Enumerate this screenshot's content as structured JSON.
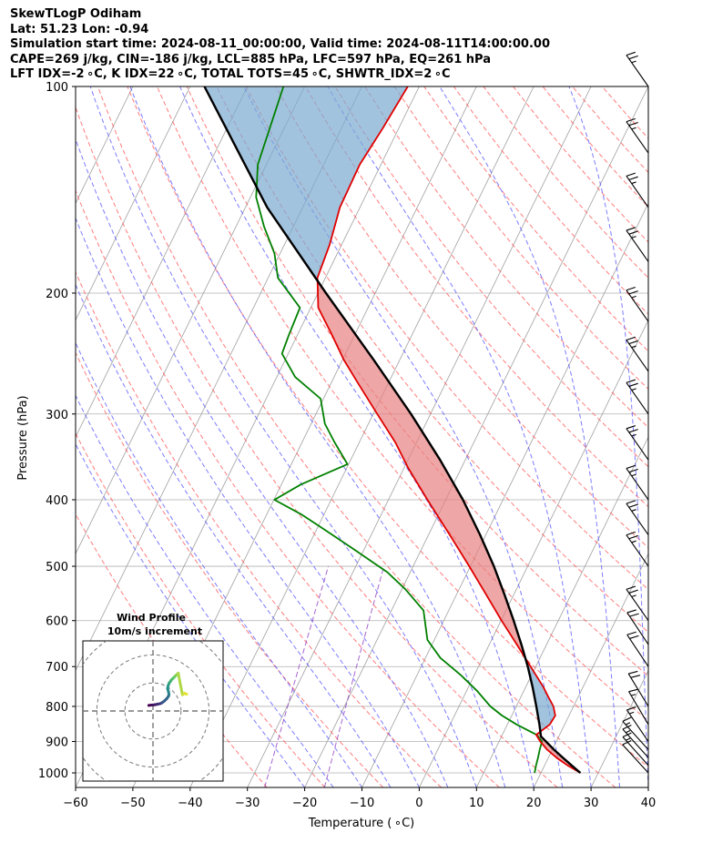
{
  "header": {
    "line1": "SkewTLogP Odiham",
    "line2": "Lat: 51.23   Lon: -0.94",
    "line3": "Simulation start time: 2024-08-11_00:00:00, Valid time: 2024-08-11T14:00:00.00",
    "line4": "CAPE=269 j/kg, CIN=-186 j/kg, LCL=885 hPa, LFC=597 hPa, EQ=261 hPa",
    "line5": "LFT IDX=-2 ∘C, K IDX=22 ∘C, TOTAL TOTS=45 ∘C, SHWTR_IDX=2 ∘C"
  },
  "hodograph": {
    "title": "Wind Profile",
    "subtitle": "10m/s increment"
  },
  "colors": {
    "temperature": "#e00000",
    "dewpoint": "#008000",
    "parcel": "#000000",
    "cape_fill": "#e88080",
    "cin_fill": "#7aa9d0",
    "dry_adiabat": "#ff5050",
    "moist_adiabat": "#5050ff",
    "mixing_ratio": "#9040c0",
    "isotherm": "#a0a0a0"
  },
  "chart_data": {
    "type": "skewt-logp",
    "title": "SkewTLogP Odiham",
    "xlabel": "Temperature ( ∘C)",
    "ylabel": "Pressure (hPa)",
    "xlim": [
      -60,
      40
    ],
    "ylim": [
      1050,
      100
    ],
    "skew": 60,
    "grid": true,
    "x_ticks": [
      -60,
      -50,
      -40,
      -30,
      -20,
      -10,
      0,
      10,
      20,
      30,
      40
    ],
    "x_tick_labels": [
      "−60",
      "−50",
      "−40",
      "−30",
      "−20",
      "−10",
      "0",
      "10",
      "20",
      "30",
      "40"
    ],
    "y_ticks": [
      1000,
      900,
      800,
      700,
      600,
      500,
      400,
      300,
      200,
      100
    ],
    "y_tick_labels": [
      "1000",
      "900",
      "800",
      "700",
      "600",
      "500",
      "400",
      "300",
      "200",
      "100"
    ],
    "temperature": {
      "p": [
        1000,
        975,
        950,
        925,
        900,
        880,
        850,
        825,
        800,
        775,
        750,
        700,
        650,
        600,
        550,
        500,
        450,
        400,
        360,
        330,
        300,
        270,
        250,
        230,
        210,
        190,
        170,
        150,
        130,
        115,
        100
      ],
      "t": [
        26.9,
        24.0,
        21.4,
        19.1,
        17.2,
        15.9,
        17.4,
        17.6,
        16.5,
        14.8,
        13.1,
        9.1,
        4.8,
        0.1,
        -4.8,
        -10.2,
        -16.3,
        -23.2,
        -29.2,
        -33.7,
        -39.3,
        -45.4,
        -49.8,
        -54.0,
        -58.7,
        -61.4,
        -62.1,
        -63.5,
        -63.7,
        -62.8,
        -62.0
      ]
    },
    "dewpoint": {
      "p": [
        1000,
        975,
        950,
        925,
        900,
        880,
        850,
        825,
        800,
        760,
        720,
        680,
        640,
        580,
        540,
        510,
        470,
        440,
        420,
        400,
        380,
        355,
        330,
        310,
        285,
        265,
        245,
        230,
        210,
        190,
        175,
        160,
        145,
        130,
        100
      ],
      "t": [
        18.9,
        18.5,
        18.2,
        17.8,
        17.5,
        16.0,
        11.6,
        8.3,
        5.5,
        1.9,
        -2.4,
        -7.4,
        -11.2,
        -14.4,
        -19.4,
        -24.0,
        -32.3,
        -39.1,
        -44.0,
        -49.9,
        -46.6,
        -40.2,
        -44.3,
        -47.6,
        -50.5,
        -56.8,
        -61.1,
        -61.5,
        -61.9,
        -68.3,
        -71.0,
        -75.1,
        -79.0,
        -81.5,
        -83.7
      ]
    },
    "parcel": {
      "p": [
        1000,
        975,
        950,
        925,
        900,
        885,
        850,
        800,
        750,
        700,
        650,
        600,
        550,
        500,
        450,
        400,
        350,
        300,
        250,
        200,
        150,
        100
      ],
      "t": [
        26.9,
        24.7,
        22.5,
        20.3,
        18.2,
        16.9,
        15.6,
        13.5,
        11.2,
        8.6,
        5.6,
        2.2,
        -1.6,
        -5.9,
        -11.0,
        -17.0,
        -24.4,
        -33.4,
        -44.6,
        -58.6,
        -76.2,
        -97.5
      ]
    },
    "wind_barbs": [
      {
        "p": 1000,
        "u": 4.1,
        "v": 4.5
      },
      {
        "p": 975,
        "u": 4.3,
        "v": 4.8
      },
      {
        "p": 950,
        "u": 4.5,
        "v": 5.0
      },
      {
        "p": 925,
        "u": 4.7,
        "v": 5.2
      },
      {
        "p": 900,
        "u": 4.1,
        "v": 6.0
      },
      {
        "p": 850,
        "u": 3.8,
        "v": 6.4
      },
      {
        "p": 800,
        "u": 4.8,
        "v": 7.9
      },
      {
        "p": 700,
        "u": 6.0,
        "v": 9.0
      },
      {
        "p": 650,
        "u": 6.3,
        "v": 9.5
      },
      {
        "p": 600,
        "u": 7.0,
        "v": 10.0
      },
      {
        "p": 500,
        "u": 7.0,
        "v": 10.0
      },
      {
        "p": 450,
        "u": 7.0,
        "v": 10.0
      },
      {
        "p": 400,
        "u": 7.0,
        "v": 10.0
      },
      {
        "p": 350,
        "u": 7.0,
        "v": 10.0
      },
      {
        "p": 300,
        "u": 7.0,
        "v": 10.0
      },
      {
        "p": 260,
        "u": 7.0,
        "v": 10.0
      },
      {
        "p": 220,
        "u": 7.0,
        "v": 10.0
      },
      {
        "p": 180,
        "u": 7.0,
        "v": 10.0
      },
      {
        "p": 150,
        "u": 7.0,
        "v": 10.0
      },
      {
        "p": 125,
        "u": 7.0,
        "v": 10.0
      },
      {
        "p": 100,
        "u": 7.0,
        "v": 10.0
      }
    ],
    "hodograph": {
      "u": [
        -1.5,
        -0.5,
        0.5,
        1.5,
        2.5,
        3.0,
        3.3,
        4.0,
        5.0,
        5.6,
        5.7,
        5.5,
        5.2,
        5.4,
        5.8,
        6.2,
        6.5,
        7.0,
        7.5,
        8.0,
        8.5,
        9.0,
        10.5,
        11.3,
        12.0
      ],
      "v": [
        2.0,
        2.1,
        2.2,
        2.4,
        2.6,
        2.8,
        3.0,
        3.5,
        4.5,
        5.4,
        6.0,
        7.0,
        8.0,
        9.0,
        10.0,
        10.5,
        11.0,
        11.5,
        12.0,
        12.5,
        13.0,
        13.5,
        5.8,
        6.3,
        6.0
      ],
      "rings": [
        10,
        20,
        30
      ],
      "range": [
        -25,
        25
      ]
    }
  }
}
